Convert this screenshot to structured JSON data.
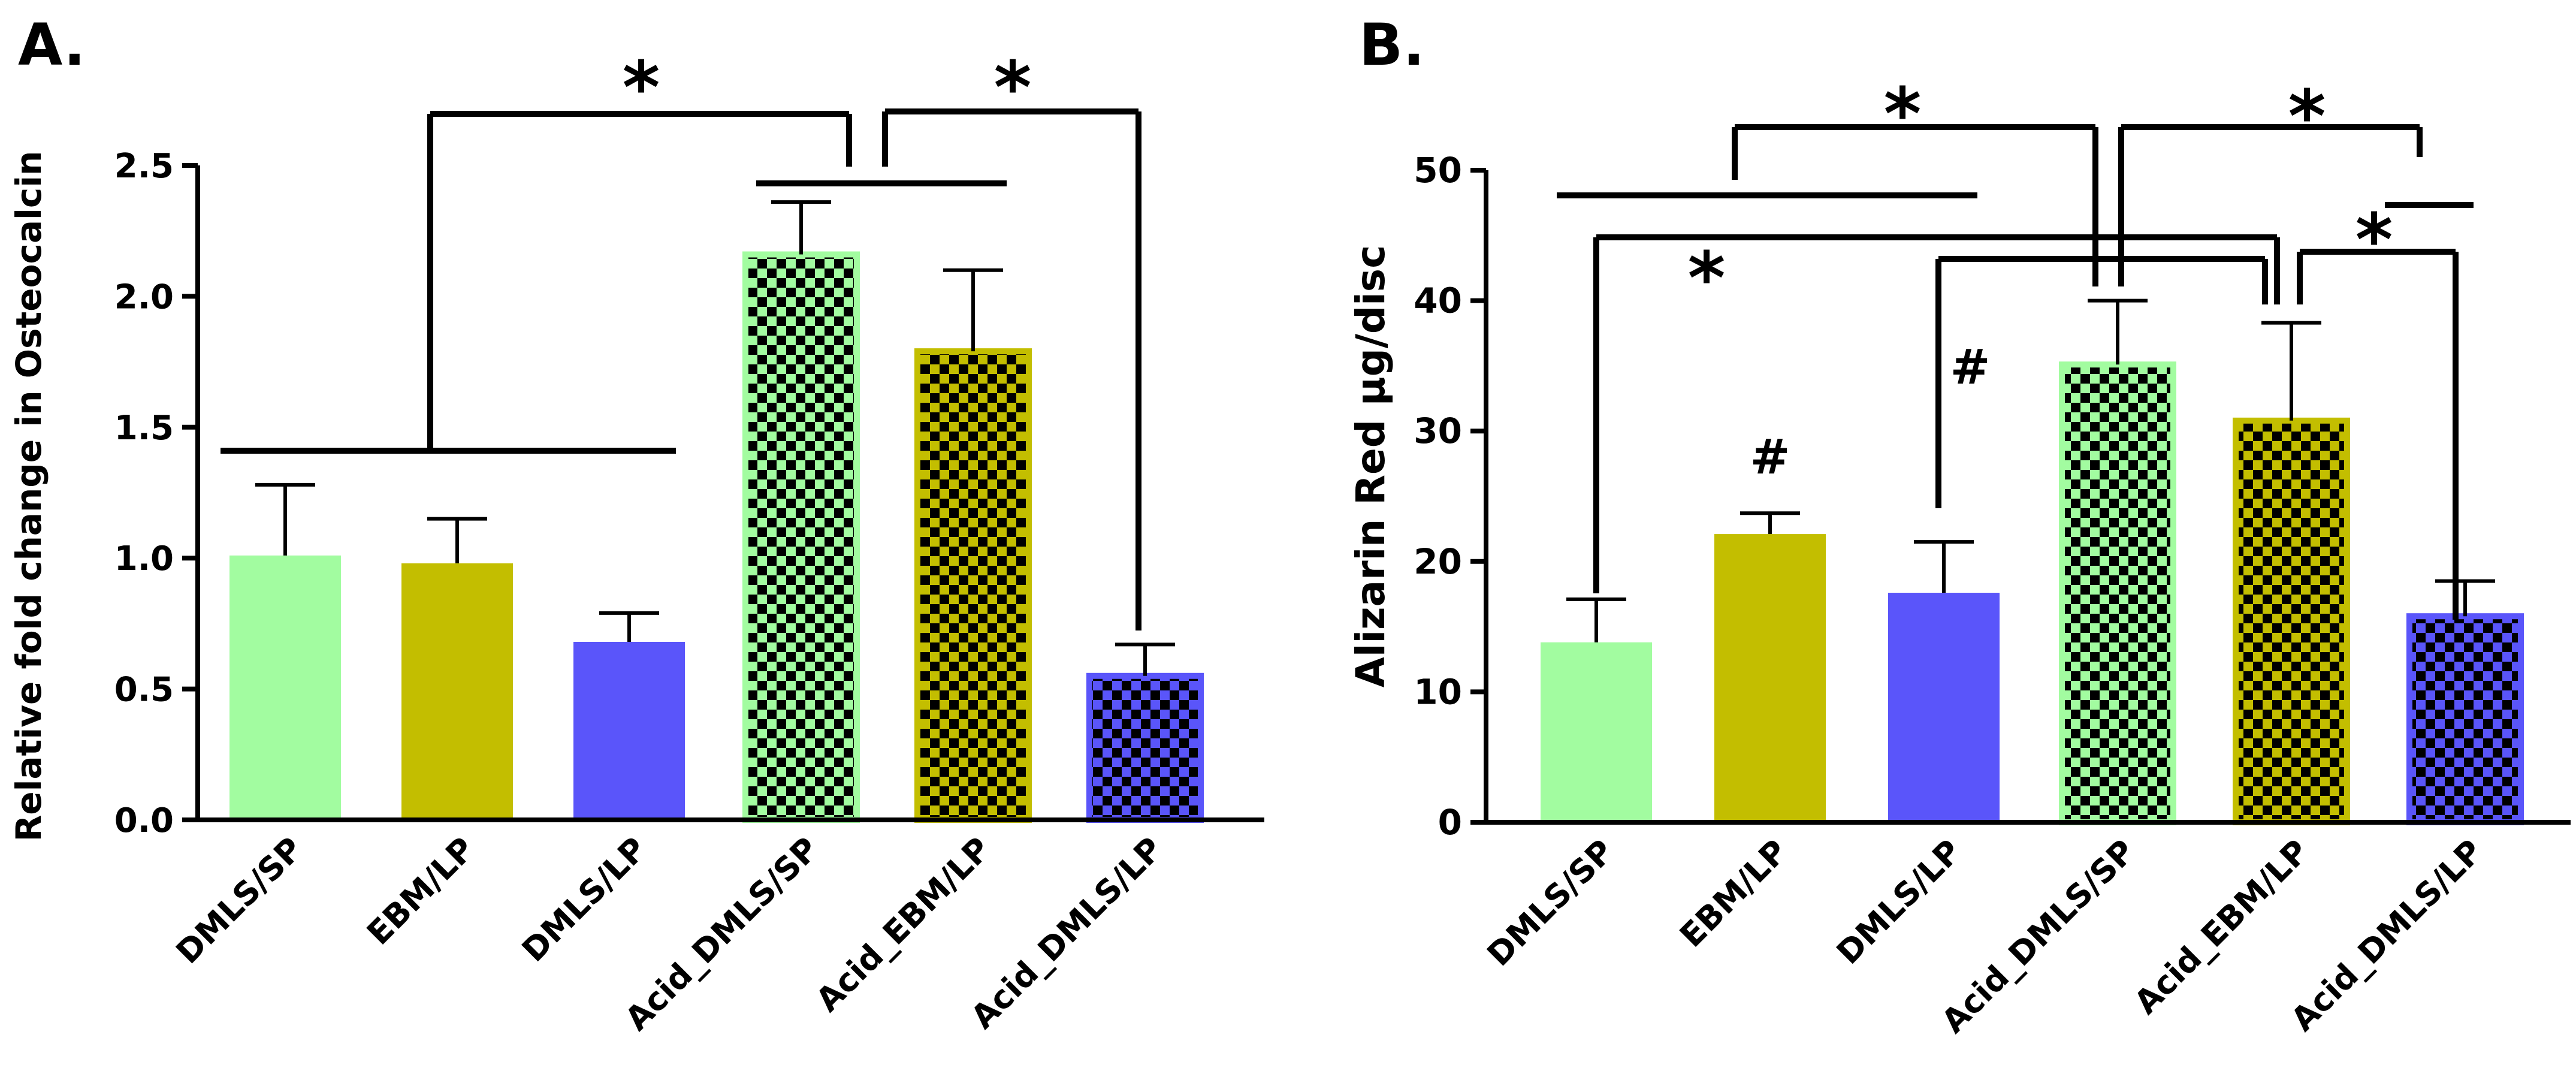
{
  "colors": {
    "green": "#a2fca0",
    "olive": "#c3be00",
    "blue": "#5a55fa",
    "checker": "#000000"
  },
  "chart_data": [
    {
      "panel_label": "A.",
      "type": "bar",
      "ylabel": "Relative fold change in Osteocalcin",
      "ylim": [
        0,
        2.5
      ],
      "yticks": [
        0.0,
        0.5,
        1.0,
        1.5,
        2.0,
        2.5
      ],
      "ytick_labels": [
        "0.0",
        "0.5",
        "1.0",
        "1.5",
        "2.0",
        "2.5"
      ],
      "categories": [
        "DMLS/SP",
        "EBM/LP",
        "DMLS/LP",
        "Acid_DMLS/SP",
        "Acid_EBM/LP",
        "Acid_DMLS/LP"
      ],
      "values": [
        1.01,
        0.98,
        0.68,
        2.16,
        1.79,
        0.55
      ],
      "errors": [
        0.27,
        0.17,
        0.11,
        0.2,
        0.31,
        0.12
      ],
      "bar_colors": [
        "green",
        "olive",
        "blue",
        "green",
        "olive",
        "blue"
      ],
      "patterned": [
        false,
        false,
        false,
        true,
        true,
        true
      ],
      "annotations": [
        "*",
        "*"
      ]
    },
    {
      "panel_label": "B.",
      "type": "bar",
      "ylabel": "Alizarin Red µg/disc",
      "ylim": [
        0,
        50
      ],
      "yticks": [
        0,
        10,
        20,
        30,
        40,
        50
      ],
      "ytick_labels": [
        "0",
        "10",
        "20",
        "30",
        "40",
        "50"
      ],
      "categories": [
        "DMLS/SP",
        "EBM/LP",
        "DMLS/LP",
        "Acid_DMLS/SP",
        "Acid_EBM/LP",
        "Acid_DMLS/LP"
      ],
      "values": [
        13.8,
        22.1,
        17.6,
        35.1,
        30.8,
        15.8
      ],
      "errors": [
        3.3,
        1.6,
        3.9,
        4.9,
        7.5,
        2.7
      ],
      "bar_colors": [
        "green",
        "olive",
        "blue",
        "green",
        "olive",
        "blue"
      ],
      "patterned": [
        false,
        false,
        false,
        true,
        true,
        true
      ],
      "annotations": [
        "*",
        "*",
        "*",
        "*",
        "#",
        "#"
      ]
    }
  ]
}
